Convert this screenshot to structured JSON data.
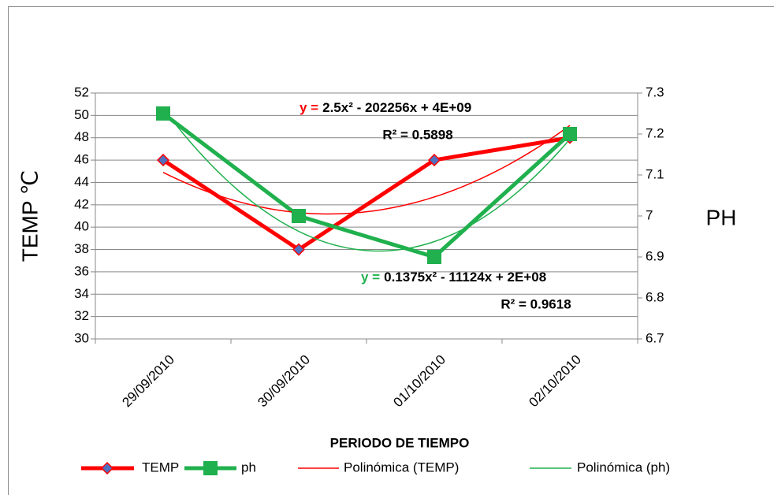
{
  "chart_data": {
    "type": "line",
    "categories": [
      "29/09/2010",
      "30/09/2010",
      "01/10/2010",
      "02/10/2010"
    ],
    "series": [
      {
        "name": "TEMP",
        "color": "#ff0000",
        "marker_color": "#4f6fc0",
        "values": [
          46,
          38,
          46,
          48
        ]
      },
      {
        "name": "ph",
        "color": "#20b04e",
        "axis": "y2",
        "values": [
          7.25,
          7.0,
          6.9,
          7.2
        ]
      }
    ],
    "trendlines": [
      {
        "name": "Polinómica (TEMP)",
        "series": 0,
        "color": "#ff0000",
        "equation_prefix": "y =",
        "equation": "2.5x² - 202256x + 4E+09",
        "r2": "R² = 0.5898"
      },
      {
        "name": "Polinómica (ph)",
        "series": 1,
        "color": "#20b04e",
        "equation_prefix": "y =",
        "equation": "0.1375x² - 11124x + 2E+08",
        "r2": "R² = 0.9618"
      }
    ],
    "y_label": "TEMP ℃",
    "y2_label": "PH",
    "x_label": "PERIODO DE TIEMPO",
    "ylim": [
      30,
      52
    ],
    "yticks": [
      30,
      32,
      34,
      36,
      38,
      40,
      42,
      44,
      46,
      48,
      50,
      52
    ],
    "y2lim": [
      6.7,
      7.3
    ],
    "y2ticks": [
      6.7,
      6.8,
      6.9,
      7,
      7.1,
      7.2,
      7.3
    ],
    "grid": true
  }
}
